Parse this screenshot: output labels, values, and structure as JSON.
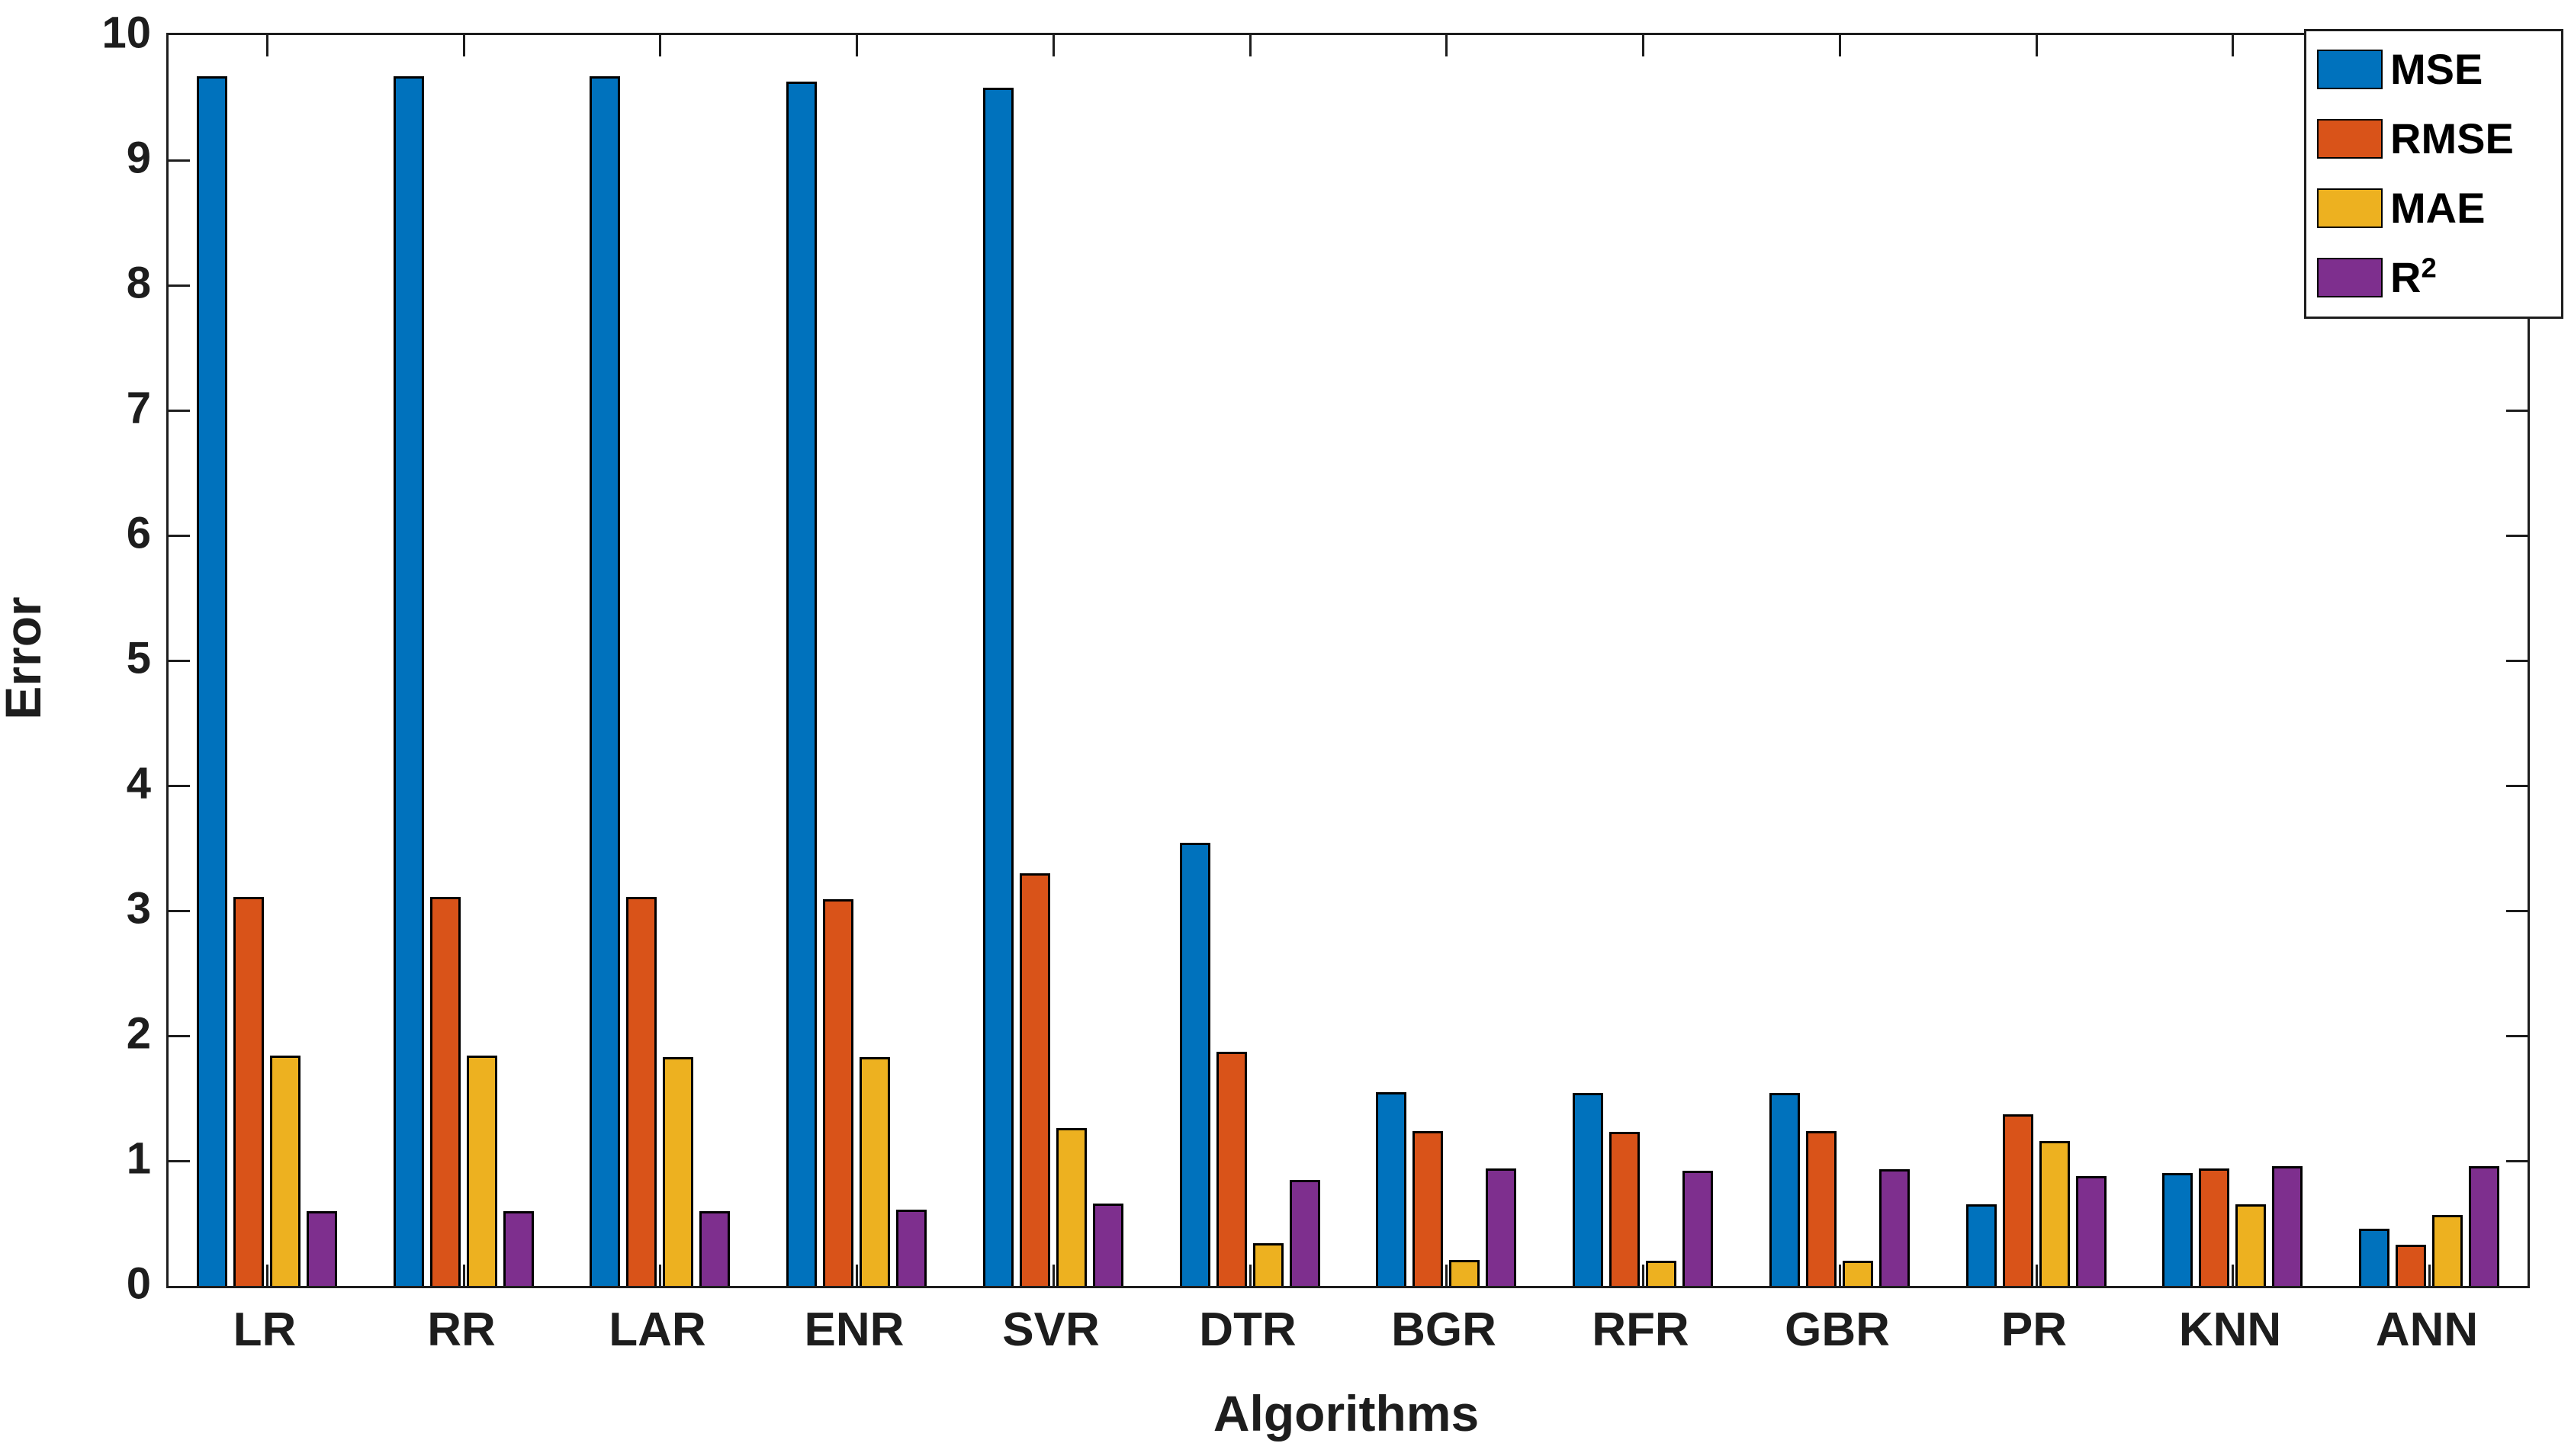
{
  "figure": {
    "background": "#ffffff",
    "axis_color": "#1d1d1d",
    "bar_edge_color": "#000000"
  },
  "axes": {
    "xlabel": "Algorithms",
    "ylabel": "Error"
  },
  "legend": {
    "position": "upper-right",
    "entries": [
      {
        "label": "MSE",
        "color": "#0072BD"
      },
      {
        "label": "RMSE",
        "color": "#D95319"
      },
      {
        "label": "MAE",
        "color": "#EDB120"
      },
      {
        "label": "R²",
        "color": "#7E2F8E"
      }
    ]
  },
  "chart_data": {
    "type": "bar",
    "title": "",
    "xlabel": "Algorithms",
    "ylabel": "Error",
    "ylim": [
      0,
      10
    ],
    "yticks": [
      "0",
      "1",
      "2",
      "3",
      "4",
      "5",
      "6",
      "7",
      "8",
      "9",
      "10"
    ],
    "grid": false,
    "legend_position": "upper right",
    "categories": [
      "LR",
      "RR",
      "LAR",
      "ENR",
      "SVR",
      "DTR",
      "BGR",
      "RFR",
      "GBR",
      "PR",
      "KNN",
      "ANN"
    ],
    "series": [
      {
        "name": "MSE",
        "color": "#0072BD",
        "values": [
          9.67,
          9.67,
          9.67,
          9.63,
          9.58,
          3.54,
          1.55,
          1.54,
          1.54,
          0.65,
          0.9,
          0.46
        ]
      },
      {
        "name": "RMSE",
        "color": "#D95319",
        "values": [
          3.11,
          3.11,
          3.11,
          3.09,
          3.3,
          1.87,
          1.24,
          1.23,
          1.24,
          1.37,
          0.94,
          0.33
        ]
      },
      {
        "name": "MAE",
        "color": "#EDB120",
        "values": [
          1.84,
          1.84,
          1.83,
          1.83,
          1.26,
          0.34,
          0.21,
          0.2,
          0.2,
          1.16,
          0.65,
          0.57
        ]
      },
      {
        "name": "R²",
        "color": "#7E2F8E",
        "values": [
          0.6,
          0.6,
          0.6,
          0.61,
          0.66,
          0.85,
          0.94,
          0.92,
          0.93,
          0.88,
          0.96,
          0.96
        ]
      }
    ]
  }
}
